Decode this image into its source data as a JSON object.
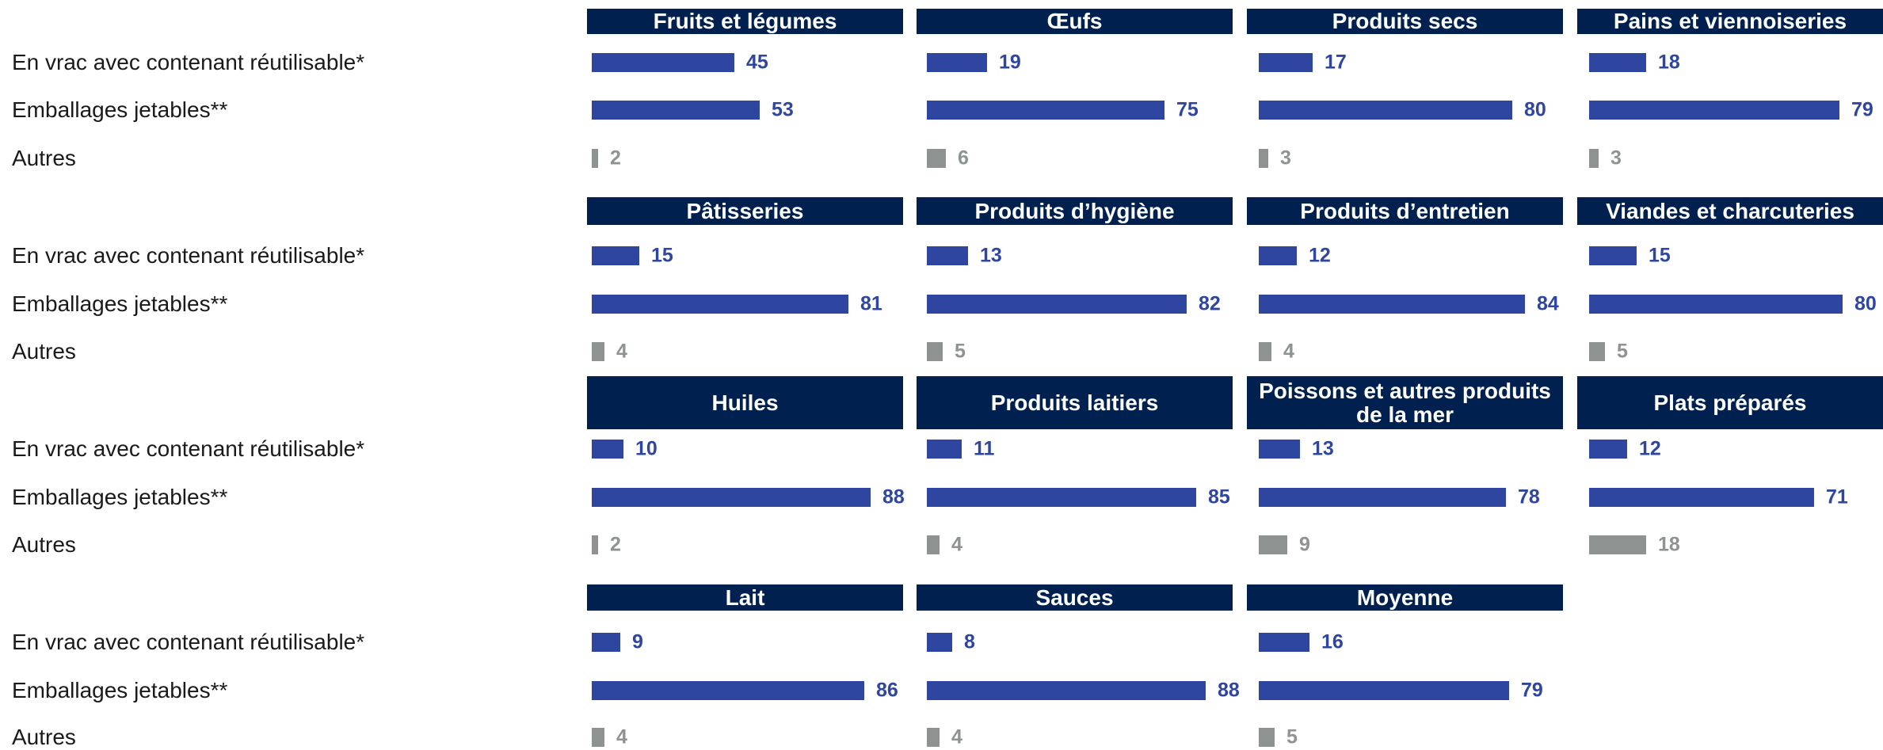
{
  "chart_data": {
    "type": "bar",
    "orientation": "horizontal",
    "categories": [
      "En vrac avec contenant réutilisable*",
      "Emballages jetables**",
      "Autres"
    ],
    "colors": [
      "#2e46a0",
      "#2e46a0",
      "#8e9291"
    ],
    "panels": [
      {
        "title": "Fruits et légumes",
        "values": [
          45,
          53,
          2
        ]
      },
      {
        "title": "Œufs",
        "values": [
          19,
          75,
          6
        ]
      },
      {
        "title": "Produits secs",
        "values": [
          17,
          80,
          3
        ]
      },
      {
        "title": "Pains et viennoiseries",
        "values": [
          18,
          79,
          3
        ]
      },
      {
        "title": "Pâtisseries",
        "values": [
          15,
          81,
          4
        ]
      },
      {
        "title": "Produits d’hygiène",
        "values": [
          13,
          82,
          5
        ]
      },
      {
        "title": "Produits d’entretien",
        "values": [
          12,
          84,
          4
        ]
      },
      {
        "title": "Viandes et charcuteries",
        "values": [
          15,
          80,
          5
        ]
      },
      {
        "title": "Huiles",
        "values": [
          10,
          88,
          2
        ]
      },
      {
        "title": "Produits laitiers",
        "values": [
          11,
          85,
          4
        ]
      },
      {
        "title": "Poissons et autres produits de la mer",
        "values": [
          13,
          78,
          9
        ]
      },
      {
        "title": "Plats préparés",
        "values": [
          12,
          71,
          18
        ]
      },
      {
        "title": "Lait",
        "values": [
          9,
          86,
          4
        ]
      },
      {
        "title": "Sauces",
        "values": [
          8,
          88,
          4
        ]
      },
      {
        "title": "Moyenne",
        "values": [
          16,
          79,
          5
        ]
      }
    ]
  }
}
